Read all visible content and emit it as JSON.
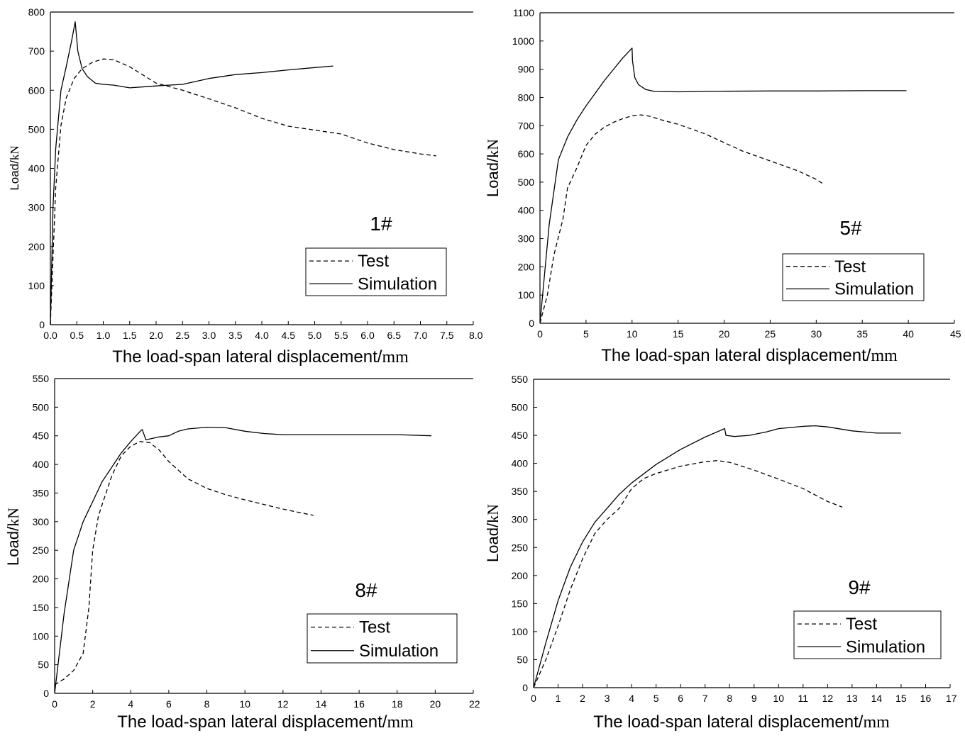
{
  "chart_data": [
    {
      "type": "line",
      "panel_label": "1#",
      "xlabel_main": "The load-span lateral displacement/",
      "xlabel_unit": "mm",
      "ylabel_main": "Load/",
      "ylabel_unit": "kN",
      "xlim": [
        0,
        8
      ],
      "ylim": [
        0,
        800
      ],
      "xticks": [
        "0.0",
        "0.5",
        "1.0",
        "1.5",
        "2.0",
        "2.5",
        "3.0",
        "3.5",
        "4.0",
        "4.5",
        "5.0",
        "5.5",
        "6.0",
        "6.5",
        "7.0",
        "7.5",
        "8.0"
      ],
      "yticks": [
        "0",
        "100",
        "200",
        "300",
        "400",
        "500",
        "600",
        "700",
        "800"
      ],
      "legend": [
        "Test",
        "Simulation"
      ],
      "legend_position": "bottom-right",
      "series": [
        {
          "name": "Test",
          "style": "dashed",
          "x": [
            0,
            0.1,
            0.2,
            0.3,
            0.45,
            0.6,
            0.8,
            1.0,
            1.2,
            1.5,
            1.8,
            2.0,
            2.5,
            3.0,
            3.5,
            4.0,
            4.5,
            5.0,
            5.5,
            6.0,
            6.5,
            7.0,
            7.3
          ],
          "y": [
            0,
            350,
            510,
            580,
            630,
            655,
            672,
            680,
            678,
            660,
            635,
            618,
            600,
            578,
            555,
            528,
            508,
            498,
            488,
            465,
            448,
            437,
            432
          ]
        },
        {
          "name": "Simulation",
          "style": "solid",
          "x": [
            0,
            0.05,
            0.1,
            0.2,
            0.3,
            0.4,
            0.47,
            0.52,
            0.6,
            0.7,
            0.85,
            1.0,
            1.2,
            1.5,
            1.8,
            2.0,
            2.5,
            3.0,
            3.5,
            4.0,
            4.5,
            5.0,
            5.35
          ],
          "y": [
            0,
            300,
            450,
            600,
            660,
            725,
            775,
            700,
            655,
            635,
            618,
            615,
            613,
            606,
            609,
            611,
            615,
            630,
            640,
            645,
            652,
            658,
            662
          ]
        }
      ]
    },
    {
      "type": "line",
      "panel_label": "5#",
      "xlabel_main": "The load-span lateral displacement/",
      "xlabel_unit": "mm",
      "ylabel_main": "Load/",
      "ylabel_unit": "kN",
      "xlim": [
        0,
        45
      ],
      "ylim": [
        0,
        1100
      ],
      "xticks": [
        "0",
        "5",
        "10",
        "15",
        "20",
        "25",
        "30",
        "35",
        "40",
        "45"
      ],
      "yticks": [
        "0",
        "100",
        "200",
        "300",
        "400",
        "500",
        "600",
        "700",
        "800",
        "900",
        "1000",
        "1100"
      ],
      "legend": [
        "Test",
        "Simulation"
      ],
      "legend_position": "bottom-right",
      "series": [
        {
          "name": "Test",
          "style": "dashed",
          "x": [
            0,
            0.8,
            1.5,
            2.5,
            3.0,
            4.0,
            5.0,
            6.0,
            7.0,
            8.0,
            9.0,
            10.0,
            11.0,
            12.0,
            13.0,
            15.0,
            18.0,
            20.0,
            22.0,
            25.0,
            28.0,
            30.0,
            30.7
          ],
          "y": [
            0,
            100,
            240,
            370,
            480,
            550,
            630,
            670,
            695,
            712,
            725,
            735,
            738,
            733,
            722,
            705,
            670,
            640,
            610,
            575,
            540,
            510,
            495
          ]
        },
        {
          "name": "Simulation",
          "style": "solid",
          "x": [
            0,
            1.0,
            2.0,
            3.0,
            4.0,
            5.0,
            6.0,
            7.0,
            8.0,
            9.0,
            10.0,
            10.05,
            10.3,
            10.7,
            11.5,
            12.5,
            15.0,
            20.0,
            25.0,
            30.0,
            35.0,
            39.8
          ],
          "y": [
            0,
            350,
            580,
            660,
            720,
            770,
            815,
            860,
            900,
            940,
            975,
            930,
            870,
            845,
            828,
            821,
            820,
            822,
            823,
            823,
            824,
            824
          ]
        }
      ]
    },
    {
      "type": "line",
      "panel_label": "8#",
      "xlabel_main": "The load-span lateral displacement/",
      "xlabel_unit": "mm",
      "ylabel_main": "Load/",
      "ylabel_unit": "kN",
      "xlim": [
        0,
        22
      ],
      "ylim": [
        0,
        550
      ],
      "xticks": [
        "0",
        "2",
        "4",
        "6",
        "8",
        "10",
        "12",
        "14",
        "16",
        "18",
        "20",
        "22"
      ],
      "yticks": [
        "0",
        "50",
        "100",
        "150",
        "200",
        "250",
        "300",
        "350",
        "400",
        "450",
        "500",
        "550"
      ],
      "legend": [
        "Test",
        "Simulation"
      ],
      "legend_position": "bottom-right",
      "series": [
        {
          "name": "Test",
          "style": "dashed",
          "x": [
            0,
            0.5,
            1.0,
            1.5,
            1.8,
            2.0,
            2.3,
            2.6,
            3.0,
            3.5,
            4.0,
            4.5,
            5.0,
            5.5,
            6.0,
            7.0,
            8.0,
            9.0,
            10.0,
            11.0,
            12.0,
            13.0,
            13.6
          ],
          "y": [
            15,
            25,
            40,
            70,
            150,
            250,
            310,
            340,
            380,
            415,
            432,
            440,
            438,
            425,
            405,
            375,
            358,
            347,
            338,
            330,
            322,
            315,
            311
          ]
        },
        {
          "name": "Simulation",
          "style": "solid",
          "x": [
            0,
            0.5,
            1.0,
            1.5,
            2.0,
            2.5,
            3.0,
            3.5,
            4.0,
            4.5,
            4.6,
            4.8,
            5.5,
            6.0,
            6.5,
            7.0,
            8.0,
            9.0,
            10.0,
            11.0,
            12.0,
            14.0,
            16.0,
            18.0,
            19.8
          ],
          "y": [
            0,
            140,
            250,
            300,
            335,
            370,
            395,
            420,
            440,
            458,
            461,
            443,
            448,
            450,
            458,
            462,
            465,
            464,
            458,
            454,
            452,
            452,
            452,
            452,
            450
          ]
        }
      ]
    },
    {
      "type": "line",
      "panel_label": "9#",
      "xlabel_main": "The load-span lateral displacement/",
      "xlabel_unit": "mm",
      "ylabel_main": "Load/",
      "ylabel_unit": "kN",
      "xlim": [
        0,
        17
      ],
      "ylim": [
        0,
        550
      ],
      "xticks": [
        "0",
        "1",
        "2",
        "3",
        "4",
        "5",
        "6",
        "7",
        "8",
        "9",
        "10",
        "11",
        "12",
        "13",
        "14",
        "15",
        "16",
        "17"
      ],
      "yticks": [
        "0",
        "50",
        "100",
        "150",
        "200",
        "250",
        "300",
        "350",
        "400",
        "450",
        "500",
        "550"
      ],
      "legend": [
        "Test",
        "Simulation"
      ],
      "legend_position": "bottom-right",
      "series": [
        {
          "name": "Test",
          "style": "dashed",
          "x": [
            0,
            0.5,
            1.0,
            1.5,
            2.0,
            2.5,
            3.0,
            3.5,
            4.0,
            4.5,
            5.0,
            6.0,
            7.0,
            7.5,
            8.0,
            9.0,
            10.0,
            11.0,
            12.0,
            12.6
          ],
          "y": [
            0,
            50,
            110,
            175,
            230,
            275,
            300,
            320,
            355,
            373,
            382,
            395,
            403,
            405,
            402,
            388,
            372,
            355,
            332,
            322
          ]
        },
        {
          "name": "Simulation",
          "style": "solid",
          "x": [
            0,
            0.5,
            1.0,
            1.5,
            2.0,
            2.5,
            3.0,
            3.5,
            4.0,
            5.0,
            6.0,
            7.0,
            7.8,
            7.85,
            8.2,
            8.8,
            9.5,
            10.0,
            11.0,
            11.5,
            12.0,
            13.0,
            14.0,
            15.0
          ],
          "y": [
            0,
            80,
            155,
            215,
            260,
            295,
            320,
            345,
            365,
            398,
            425,
            447,
            462,
            450,
            448,
            450,
            456,
            462,
            466,
            467,
            465,
            458,
            454,
            454
          ]
        }
      ]
    }
  ]
}
